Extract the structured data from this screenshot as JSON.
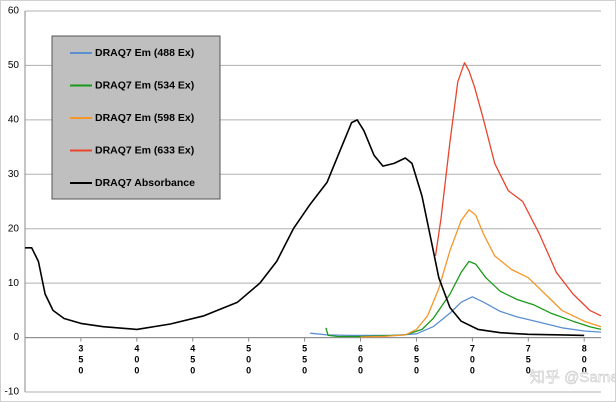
{
  "chart_data": {
    "type": "line",
    "xlim": [
      300,
      815
    ],
    "xticks": [
      350,
      400,
      450,
      500,
      550,
      600,
      650,
      700,
      750,
      800
    ],
    "ylim": [
      -10,
      60
    ],
    "yticks": [
      -10,
      0,
      10,
      20,
      30,
      40,
      50,
      60
    ],
    "grid": true,
    "series": [
      {
        "name": "DRAQ7 Em (488 Ex)",
        "color": "#5b8fd0",
        "x": [
          555,
          570,
          590,
          610,
          630,
          650,
          665,
          680,
          690,
          700,
          710,
          725,
          740,
          760,
          780,
          800,
          815
        ],
        "values": [
          0.8,
          0.5,
          0.4,
          0.4,
          0.4,
          0.7,
          2,
          4.5,
          6.5,
          7.5,
          6.5,
          4.8,
          3.8,
          2.8,
          1.8,
          1.2,
          1
        ]
      },
      {
        "name": "DRAQ7 Em (534 Ex)",
        "color": "#1a9a1a",
        "x": [
          569,
          571,
          580,
          600,
          620,
          640,
          655,
          665,
          680,
          690,
          697,
          703,
          712,
          725,
          740,
          755,
          770,
          790,
          805,
          815
        ],
        "values": [
          1.8,
          0.4,
          0.2,
          0.2,
          0.3,
          0.5,
          1.5,
          3.5,
          8,
          12,
          14,
          13.5,
          11,
          8.5,
          7,
          6,
          4.5,
          3,
          2,
          1.5
        ]
      },
      {
        "name": "DRAQ7 Em (598 Ex)",
        "color": "#f5962a",
        "x": [
          600,
          620,
          640,
          650,
          660,
          670,
          680,
          690,
          697,
          703,
          710,
          720,
          735,
          750,
          765,
          780,
          800,
          815
        ],
        "values": [
          0.1,
          0.2,
          0.5,
          1.5,
          4,
          9,
          16,
          21.5,
          23.5,
          22.5,
          19,
          15,
          12.5,
          11,
          8,
          5,
          3,
          2
        ]
      },
      {
        "name": "DRAQ7 Em (633 Ex)",
        "color": "#e8452c",
        "x": [
          667,
          672,
          680,
          687,
          693,
          697,
          702,
          710,
          720,
          732,
          745,
          760,
          775,
          790,
          805,
          815
        ],
        "values": [
          15,
          22,
          36,
          47,
          50.5,
          49,
          46,
          40,
          32,
          27,
          25,
          19,
          12,
          8,
          5,
          4
        ]
      },
      {
        "name": "DRAQ7 Absorbance",
        "color": "#000000",
        "x": [
          300,
          306,
          312,
          318,
          325,
          335,
          350,
          370,
          400,
          430,
          460,
          490,
          510,
          525,
          540,
          555,
          570,
          583,
          592,
          597,
          603,
          612,
          620,
          630,
          640,
          646,
          655,
          663,
          670,
          680,
          690,
          705,
          725,
          750,
          780,
          800
        ],
        "values": [
          16.5,
          16.5,
          14,
          8,
          5,
          3.5,
          2.6,
          2,
          1.5,
          2.5,
          4,
          6.5,
          10,
          14,
          20,
          24.5,
          28.5,
          35,
          39.5,
          40,
          38,
          33.5,
          31.5,
          32,
          33,
          32,
          26,
          18,
          11,
          5.5,
          3,
          1.5,
          0.9,
          0.6,
          0.5,
          0.4
        ]
      }
    ]
  },
  "watermark": "知乎 @Same"
}
